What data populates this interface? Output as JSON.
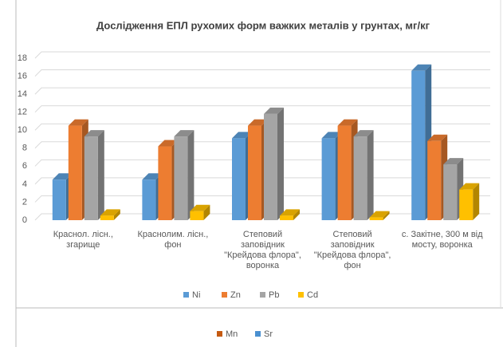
{
  "chart_data": {
    "type": "bar3d",
    "title": "Дослідження ЕПЛ рухомих форм важких металів у грунтах, мг/кг",
    "categories": [
      "Краснол. лісн., згарище",
      "Краснолим. лісн., фон",
      "Степовий заповідник \"Крейдова флора\", воронка",
      "Степовий заповідник \"Крейдова флора\", фон",
      "с. Закітне, 300 м від мосту, воронка"
    ],
    "series": [
      {
        "name": "Ni",
        "color": "#5b9bd5",
        "values": [
          4.5,
          4.5,
          9.1,
          9.1,
          16.6
        ]
      },
      {
        "name": "Zn",
        "color": "#ed7d31",
        "values": [
          10.5,
          8.2,
          10.5,
          10.5,
          8.8
        ]
      },
      {
        "name": "Pb",
        "color": "#a5a5a5",
        "values": [
          9.3,
          9.3,
          11.8,
          9.3,
          6.2
        ]
      },
      {
        "name": "Cd",
        "color": "#ffc000",
        "values": [
          0.5,
          1.0,
          0.5,
          0.3,
          3.4
        ]
      }
    ],
    "extra_legend": [
      {
        "name": "Mn",
        "color": "#c55a11"
      },
      {
        "name": "Sr",
        "color": "#4a90d0"
      }
    ],
    "ylim": [
      0,
      18
    ],
    "yticks": [
      0,
      2,
      4,
      6,
      8,
      10,
      12,
      14,
      16,
      18
    ],
    "grid": true
  }
}
